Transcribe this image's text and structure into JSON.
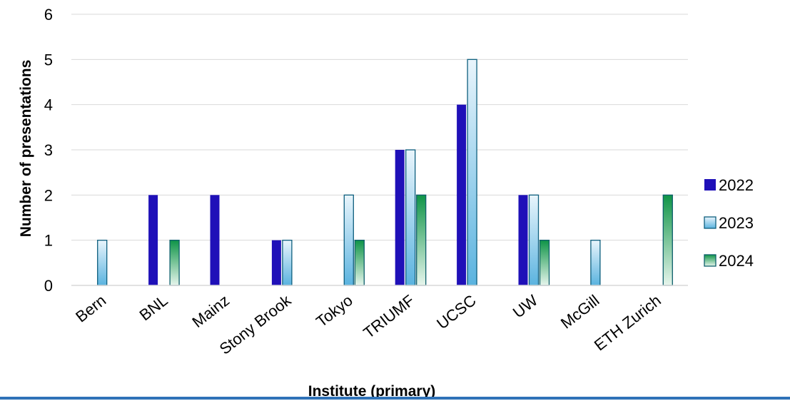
{
  "chart_data": {
    "type": "bar",
    "title": "",
    "xlabel": "Institute (primary)",
    "ylabel": "Number of presentations",
    "ylim": [
      0,
      6
    ],
    "yticks": [
      0,
      1,
      2,
      3,
      4,
      5,
      6
    ],
    "grid": true,
    "legend_position": "right",
    "categories": [
      "Bern",
      "BNL",
      "Mainz",
      "Stony Brook",
      "Tokyo",
      "TRIUMF",
      "UCSC",
      "UW",
      "McGill",
      "ETH Zurich"
    ],
    "series": [
      {
        "name": "2022",
        "values": [
          0,
          2,
          2,
          1,
          0,
          3,
          4,
          2,
          0,
          0
        ]
      },
      {
        "name": "2023",
        "values": [
          1,
          0,
          0,
          1,
          2,
          3,
          5,
          2,
          1,
          0
        ]
      },
      {
        "name": "2024",
        "values": [
          0,
          1,
          0,
          0,
          1,
          2,
          0,
          1,
          0,
          2
        ]
      }
    ],
    "colors": {
      "series_2022": "#1f10b8",
      "series_2023_light": "#e9f5fc",
      "series_2023_dark": "#5ab3df",
      "series_2023_edge": "#0e5f7e",
      "series_2024_light": "#e6f5ec",
      "series_2024_dark": "#0f9447",
      "series_2024_edge": "#0d5f6b",
      "gridline": "#d9d9d9",
      "bottom_rule": "#2f72b8"
    }
  }
}
